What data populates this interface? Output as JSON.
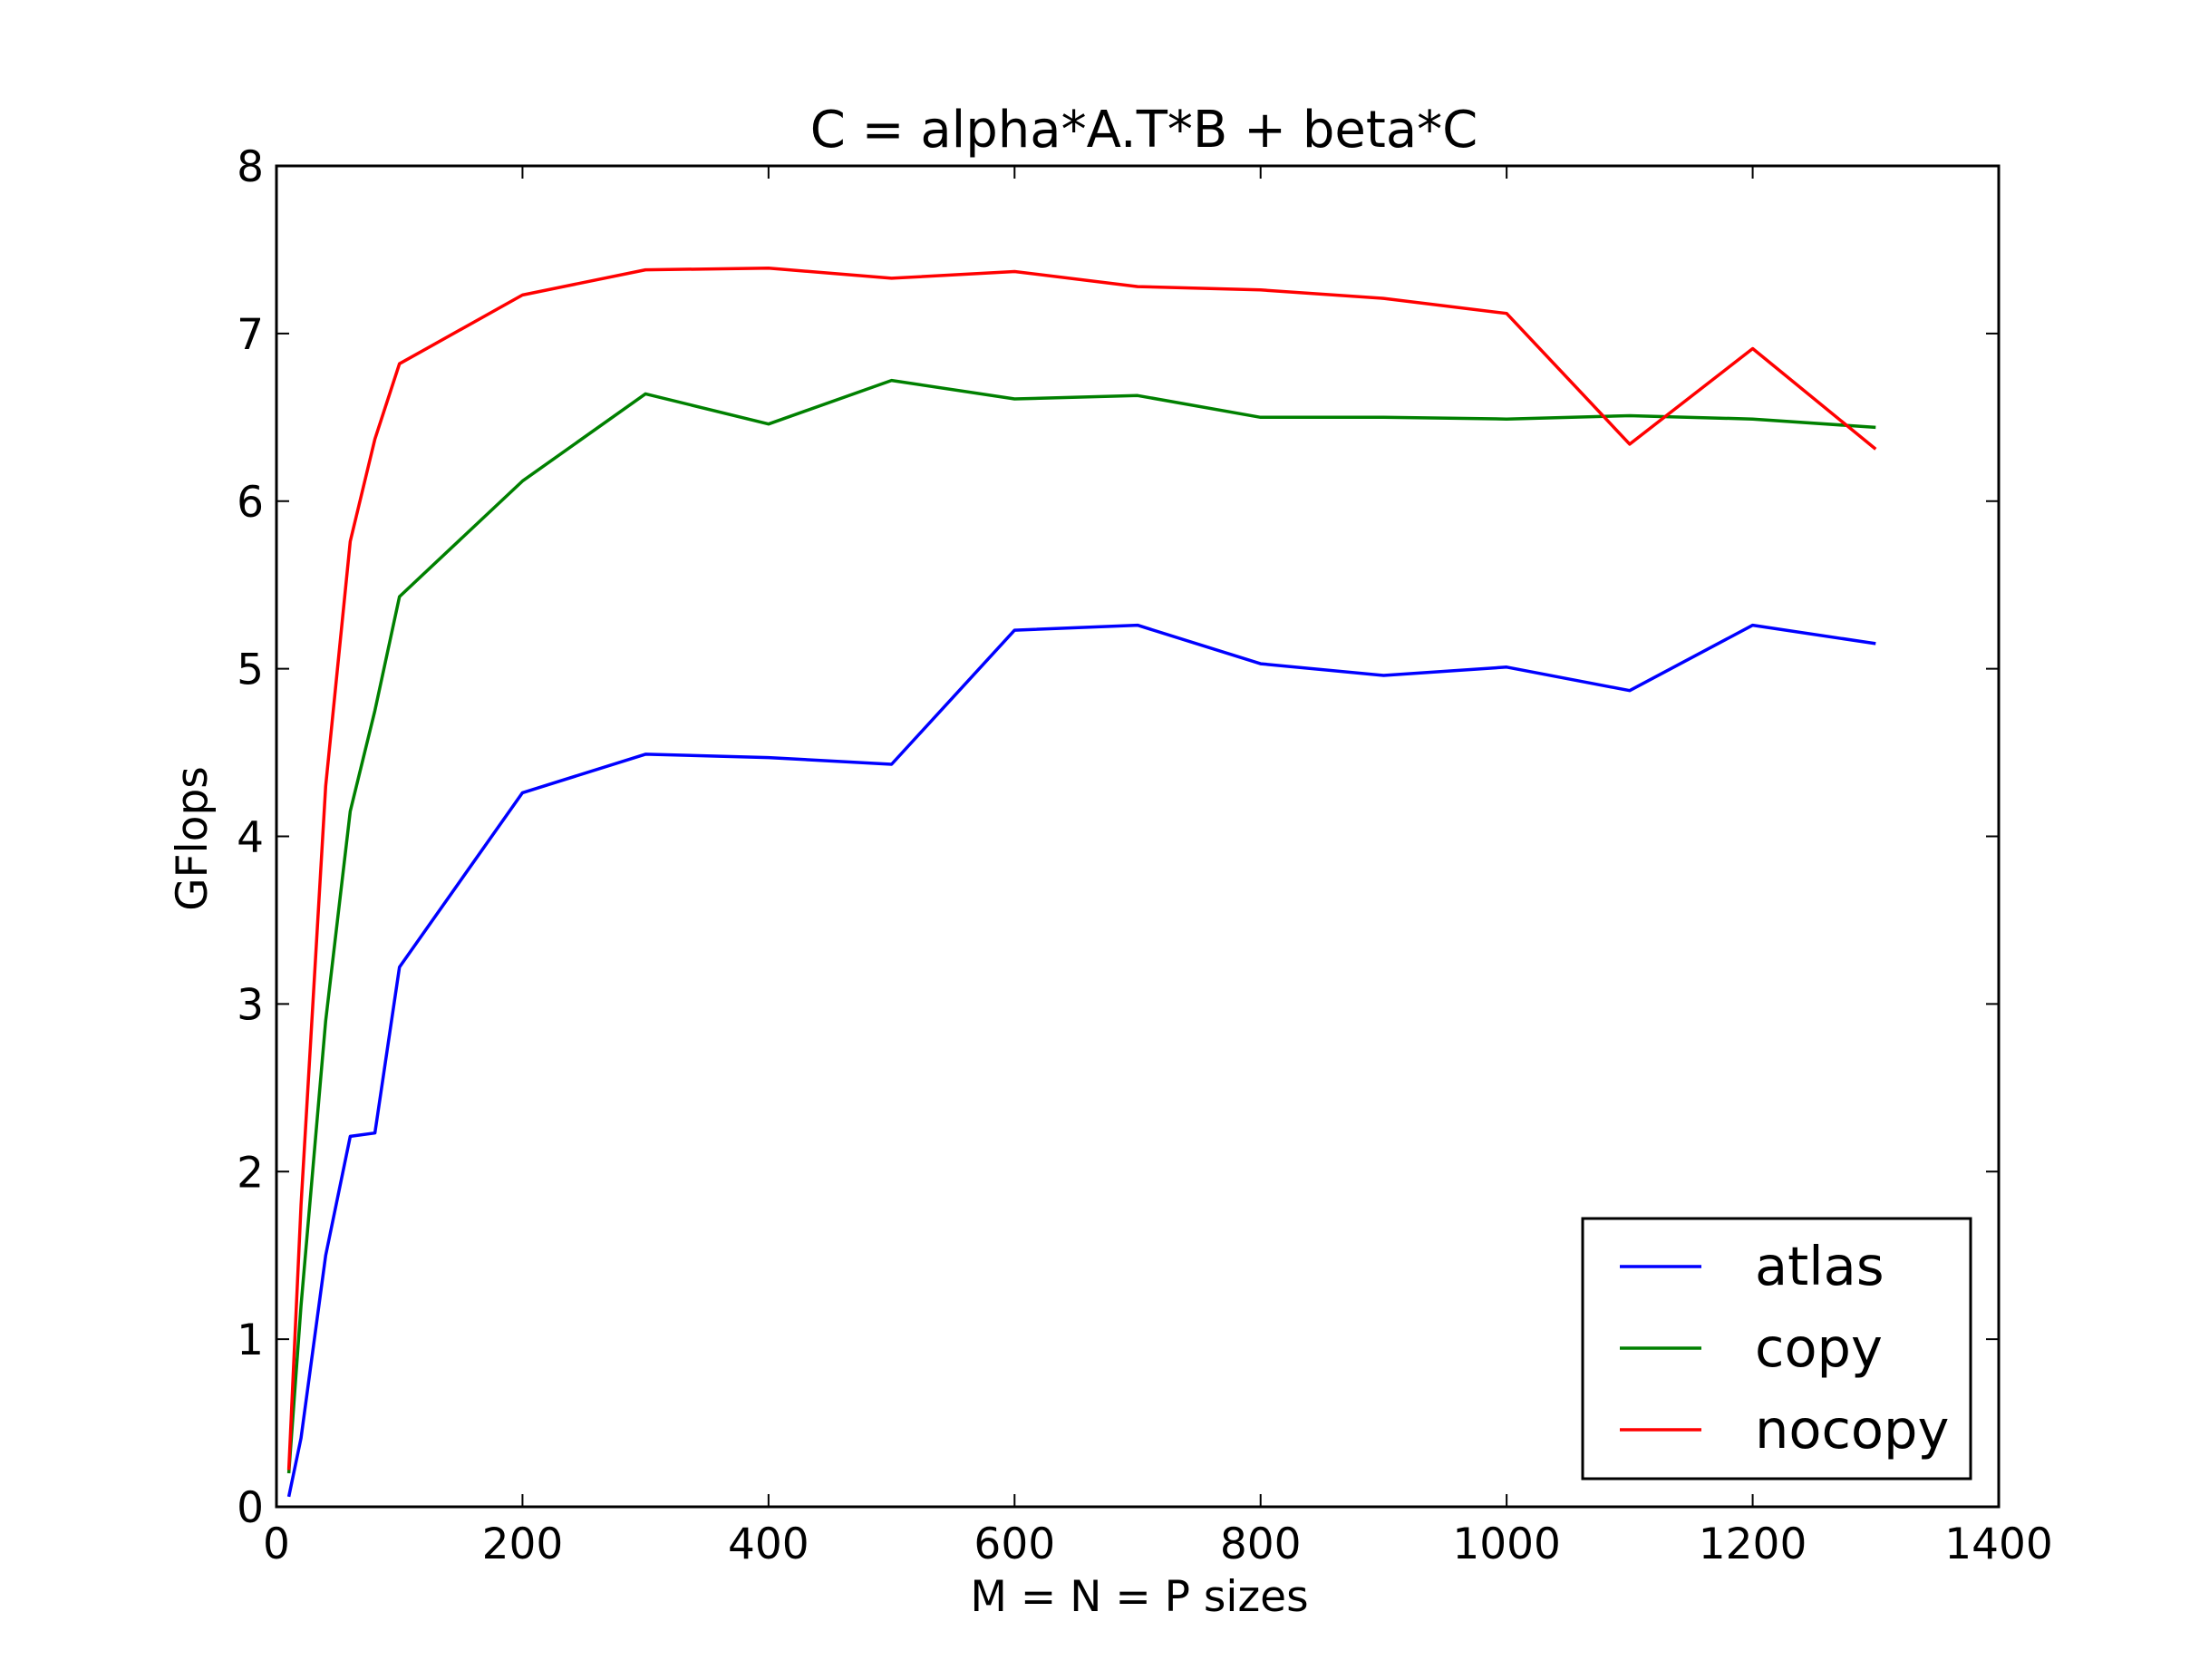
{
  "chart_data": {
    "type": "line",
    "title": "C = alpha*A.T*B + beta*C",
    "xlabel": "M = N = P sizes",
    "ylabel": "GFlops",
    "xlim": [
      0,
      1400
    ],
    "ylim": [
      0,
      8
    ],
    "xticks": [
      "0",
      "200",
      "400",
      "600",
      "800",
      "1000",
      "1200",
      "1400"
    ],
    "yticks": [
      "0",
      "1",
      "2",
      "3",
      "4",
      "5",
      "6",
      "7",
      "8"
    ],
    "grid": false,
    "legend_position": "lower-right",
    "series": [
      {
        "name": "atlas",
        "color": "#0000ff",
        "x": [
          10,
          20,
          40,
          60,
          80,
          100,
          200,
          300,
          400,
          500,
          600,
          700,
          800,
          900,
          1000,
          1100,
          1200,
          1300
        ],
        "y": [
          0.06,
          0.41,
          1.5,
          2.21,
          2.23,
          3.22,
          4.26,
          4.49,
          4.47,
          4.43,
          5.23,
          5.26,
          5.03,
          4.96,
          5.01,
          4.87,
          5.26,
          5.15
        ]
      },
      {
        "name": "copy",
        "color": "#008000",
        "x": [
          10,
          20,
          40,
          60,
          80,
          100,
          200,
          300,
          400,
          500,
          600,
          700,
          800,
          900,
          1000,
          1100,
          1200,
          1300
        ],
        "y": [
          0.2,
          1.2,
          2.9,
          4.15,
          4.75,
          5.43,
          6.12,
          6.64,
          6.46,
          6.72,
          6.61,
          6.63,
          6.5,
          6.5,
          6.49,
          6.51,
          6.49,
          6.44
        ]
      },
      {
        "name": "nocopy",
        "color": "#ff0000",
        "x": [
          10,
          20,
          40,
          60,
          80,
          100,
          200,
          300,
          400,
          500,
          600,
          700,
          800,
          900,
          1000,
          1100,
          1200,
          1300
        ],
        "y": [
          0.22,
          1.8,
          4.3,
          5.76,
          6.37,
          6.82,
          7.23,
          7.38,
          7.39,
          7.33,
          7.37,
          7.28,
          7.26,
          7.21,
          7.12,
          6.34,
          6.91,
          6.31
        ]
      }
    ]
  }
}
